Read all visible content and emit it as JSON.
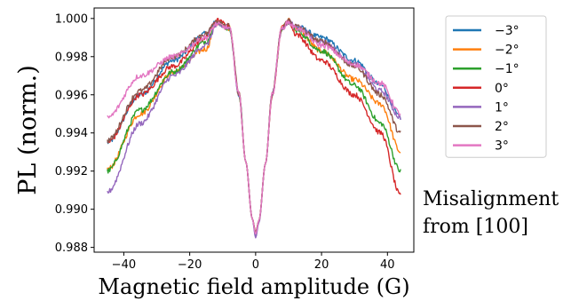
{
  "chart_data": {
    "type": "line",
    "xlabel": "Magnetic field amplitude (G)",
    "ylabel": "PL (norm.)",
    "xlim": [
      -49,
      48
    ],
    "ylim": [
      0.98775,
      1.00055
    ],
    "xticks": [
      -40,
      -20,
      0,
      20,
      40
    ],
    "yticks": [
      0.988,
      0.99,
      0.992,
      0.994,
      0.996,
      0.998,
      1.0
    ],
    "ytick_labels": [
      "0.988",
      "0.990",
      "0.992",
      "0.994",
      "0.996",
      "0.998",
      "1.000"
    ],
    "x_range": [
      -45,
      44
    ],
    "legend_position": "right, outside",
    "legend_note_line1": "Misalignment",
    "legend_note_line2": "from [100]",
    "series": [
      {
        "name": "−3°",
        "color": "#1f77b4",
        "x": [
          -45,
          -35,
          -25,
          -15,
          -12,
          -8,
          -5,
          -3,
          -1,
          0,
          1,
          3,
          5,
          8,
          10,
          12,
          20,
          30,
          38,
          44
        ],
        "y": [
          0.9935,
          0.996,
          0.9978,
          0.9992,
          0.9998,
          0.9995,
          0.996,
          0.9925,
          0.9895,
          0.9886,
          0.9894,
          0.9924,
          0.996,
          0.9995,
          0.9998,
          0.9996,
          0.999,
          0.9978,
          0.9965,
          0.9948
        ]
      },
      {
        "name": "−2°",
        "color": "#ff7f0e",
        "x": [
          -45,
          -35,
          -25,
          -15,
          -12,
          -8,
          -5,
          -3,
          -1,
          0,
          1,
          3,
          5,
          8,
          10,
          12,
          20,
          30,
          38,
          44
        ],
        "y": [
          0.9921,
          0.995,
          0.9972,
          0.9984,
          0.9997,
          0.9995,
          0.996,
          0.9925,
          0.9895,
          0.9887,
          0.9894,
          0.9924,
          0.996,
          0.9995,
          0.9999,
          0.9995,
          0.9983,
          0.9968,
          0.9955,
          0.993
        ]
      },
      {
        "name": "−1°",
        "color": "#2ca02c",
        "x": [
          -45,
          -35,
          -25,
          -15,
          -12,
          -8,
          -5,
          -3,
          -1,
          0,
          1,
          3,
          5,
          8,
          10,
          12,
          20,
          30,
          38,
          44
        ],
        "y": [
          0.992,
          0.9952,
          0.9972,
          0.9988,
          0.9998,
          0.9995,
          0.996,
          0.9925,
          0.9895,
          0.9887,
          0.9894,
          0.9924,
          0.996,
          0.9995,
          0.9998,
          0.9994,
          0.9983,
          0.9965,
          0.9945,
          0.992
        ]
      },
      {
        "name": "0°",
        "color": "#d62728",
        "x": [
          -45,
          -35,
          -25,
          -15,
          -12,
          -8,
          -5,
          -3,
          -1,
          0,
          1,
          3,
          5,
          8,
          10,
          12,
          20,
          30,
          38,
          44
        ],
        "y": [
          0.9935,
          0.996,
          0.9975,
          0.999,
          0.9999,
          0.9996,
          0.996,
          0.9925,
          0.9895,
          0.9888,
          0.9894,
          0.9924,
          0.996,
          0.9995,
          0.9999,
          0.9992,
          0.9978,
          0.996,
          0.994,
          0.9907
        ]
      },
      {
        "name": "1°",
        "color": "#9467bd",
        "x": [
          -45,
          -35,
          -25,
          -15,
          -12,
          -8,
          -5,
          -3,
          -1,
          0,
          1,
          3,
          5,
          8,
          10,
          12,
          20,
          30,
          38,
          44
        ],
        "y": [
          0.9909,
          0.9945,
          0.997,
          0.9986,
          0.9996,
          0.9995,
          0.996,
          0.9925,
          0.9895,
          0.9885,
          0.9893,
          0.9924,
          0.996,
          0.9995,
          0.9998,
          0.9996,
          0.9988,
          0.9976,
          0.9962,
          0.9948
        ]
      },
      {
        "name": "2°",
        "color": "#8c564b",
        "x": [
          -45,
          -35,
          -25,
          -15,
          -12,
          -8,
          -5,
          -3,
          -1,
          0,
          1,
          3,
          5,
          8,
          10,
          12,
          20,
          30,
          38,
          44
        ],
        "y": [
          0.9936,
          0.9962,
          0.998,
          0.9992,
          0.9999,
          0.9996,
          0.996,
          0.9925,
          0.9895,
          0.9888,
          0.9894,
          0.9924,
          0.996,
          0.9995,
          0.9999,
          0.9996,
          0.9988,
          0.9975,
          0.996,
          0.994
        ]
      },
      {
        "name": "3°",
        "color": "#e377c2",
        "x": [
          -45,
          -35,
          -25,
          -15,
          -12,
          -8,
          -5,
          -3,
          -1,
          0,
          1,
          3,
          5,
          8,
          10,
          12,
          20,
          30,
          38,
          44
        ],
        "y": [
          0.9948,
          0.997,
          0.998,
          0.999,
          0.9997,
          0.9995,
          0.996,
          0.9925,
          0.9895,
          0.9887,
          0.9894,
          0.9924,
          0.996,
          0.9995,
          0.9998,
          0.9995,
          0.9986,
          0.9976,
          0.9966,
          0.995
        ]
      }
    ]
  }
}
